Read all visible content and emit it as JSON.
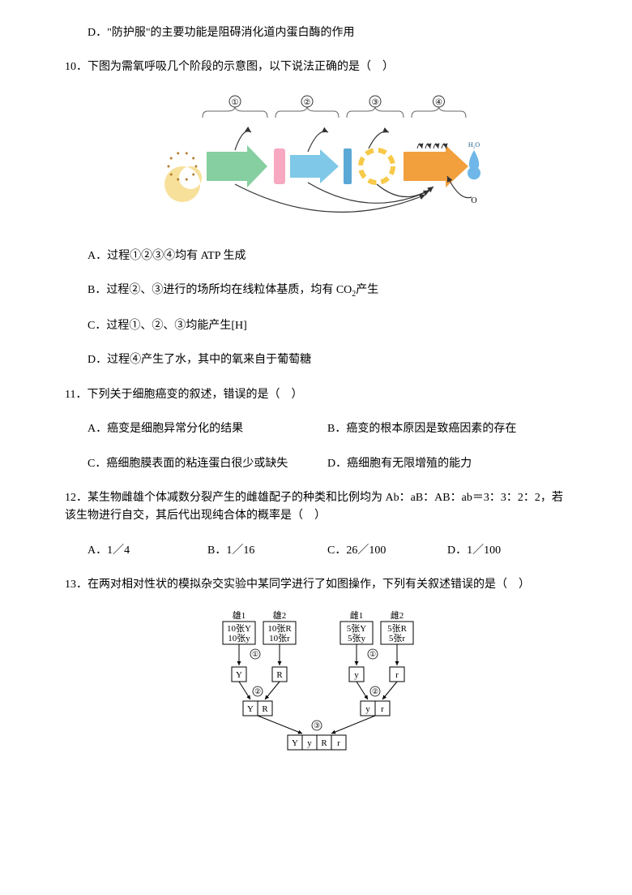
{
  "q9": {
    "optD": "D．\"防护服\"的主要功能是阻碍消化道内蛋白酶的作用"
  },
  "q10": {
    "stem": "10．下图为需氧呼吸几个阶段的示意图，以下说法正确的是（　）",
    "optA": "A．过程①②③④均有 ATP 生成",
    "optB_pre": "B．过程②、③进行的场所均在线粒体基质，均有 CO",
    "optB_sub": "2",
    "optB_post": "产生",
    "optC": "C．过程①、②、③均能产生[H]",
    "optD": "D．过程④产生了水，其中的氧来自于葡萄糖",
    "diagram": {
      "circles": [
        "①",
        "②",
        "③",
        "④"
      ],
      "h2o": "H₂O",
      "o": "O",
      "colors": {
        "crescent_fill": "#f7e09a",
        "crescent_dots": "#b47c2a",
        "arrow1": "#86cfa0",
        "bar_pink": "#f6a9c0",
        "arrow2": "#7fc8e8",
        "bar_blue": "#5aa8d6",
        "circle_yellow": "#f7c948",
        "arrow3": "#f2a03d",
        "droplet": "#6fb7e8",
        "line": "#333333",
        "circle_num_border": "#333333",
        "brace": "#666666"
      }
    }
  },
  "q11": {
    "stem": "11．下列关于细胞癌变的叙述，错误的是（　）",
    "optA": "A．癌变是细胞异常分化的结果",
    "optB": "B．癌变的根本原因是致癌因素的存在",
    "optC": "C．癌细胞膜表面的粘连蛋白很少或缺失",
    "optD": "D．癌细胞有无限增殖的能力"
  },
  "q12": {
    "stem": "12．某生物雌雄个体减数分裂产生的雌雄配子的种类和比例均为 Ab：aB：AB：ab＝3：3：2：2，若该生物进行自交，其后代出现纯合体的概率是（　）",
    "optA": "A．1／4",
    "optB": "B．1／16",
    "optC": "C．26／100",
    "optD": "D．1／100"
  },
  "q13": {
    "stem": "13．在两对相对性状的模拟杂交实验中某同学进行了如图操作，下列有关叙述错误的是（　）",
    "diagram": {
      "top_labels": [
        "雄1",
        "雄2",
        "雌1",
        "雌2"
      ],
      "top_boxes": [
        [
          "10张Y",
          "10张y"
        ],
        [
          "10张R",
          "10张r"
        ],
        [
          "5张Y",
          "5张y"
        ],
        [
          "5张R",
          "5张r"
        ]
      ],
      "step_circles": [
        "①",
        "①",
        "②",
        "②",
        "③"
      ],
      "mid_single": [
        "Y",
        "R",
        "y",
        "r"
      ],
      "mid_pairs_left": [
        "Y",
        "R"
      ],
      "mid_pairs_right": [
        "y",
        "r"
      ],
      "bottom": [
        "Y",
        "y",
        "R",
        "r"
      ],
      "colors": {
        "box_border": "#000000",
        "box_bg": "#ffffff",
        "text": "#000000",
        "arrow": "#000000"
      },
      "font_size": 11
    }
  }
}
